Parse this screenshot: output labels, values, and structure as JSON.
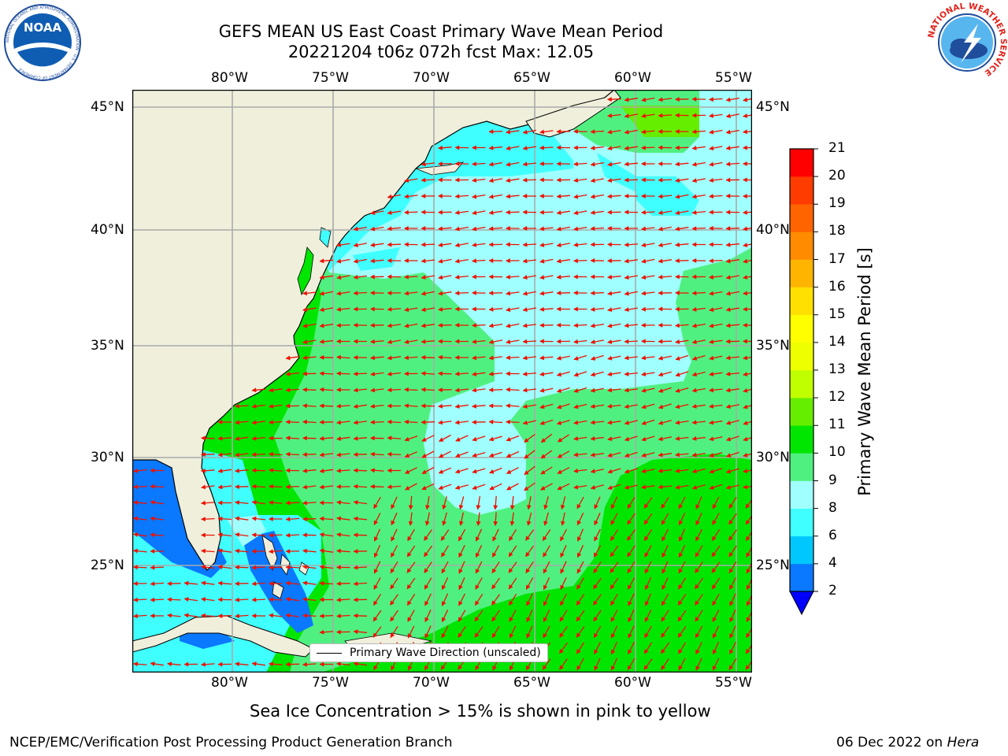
{
  "title_line1": "GEFS MEAN US East Coast Primary Wave Mean Period",
  "title_line2": "20221204 t06z 072h fcst   Max: 12.05",
  "lon_ticks": [
    "80°W",
    "75°W",
    "70°W",
    "65°W",
    "60°W",
    "55°W"
  ],
  "lat_ticks": [
    "45°N",
    "40°N",
    "35°N",
    "30°N",
    "25°N"
  ],
  "colorbar": {
    "label": "Primary Wave Mean Period [s]",
    "ticks": [
      "2",
      "4",
      "6",
      "8",
      "9",
      "10",
      "11",
      "12",
      "13",
      "14",
      "15",
      "16",
      "17",
      "18",
      "19",
      "20",
      "21"
    ],
    "colors": [
      "#0a78ff",
      "#00c8ff",
      "#40ffff",
      "#a0ffff",
      "#50f080",
      "#00e600",
      "#66ee00",
      "#c0ff00",
      "#eeff00",
      "#ffff00",
      "#ffe000",
      "#ffb400",
      "#ff8c00",
      "#ff6400",
      "#ff3c00",
      "#ff0000"
    ],
    "under_color": "#0000ff"
  },
  "legend_label": "Primary Wave Direction (unscaled)",
  "bottom_note": "Sea Ice Concentration > 15% is shown in pink to yellow",
  "footer_left": "NCEP/EMC/Verification Post Processing Product Generation Branch",
  "footer_right_date": "06 Dec 2022 on ",
  "footer_right_machine": "Hera",
  "logo_left": {
    "text": "NOAA",
    "ring": "NATIONAL OCEANIC AND ATMOSPHERIC ADMINISTRATION · U.S. DEPARTMENT OF COMMERCE"
  },
  "logo_right": {
    "ring": "NATIONAL WEATHER SERVICE"
  }
}
